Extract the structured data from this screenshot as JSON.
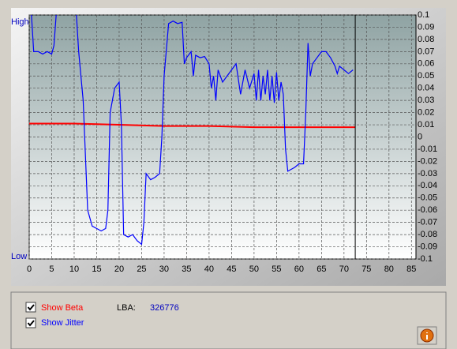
{
  "chart_data": {
    "type": "line",
    "y_left_labels": {
      "top": "High",
      "bottom": "Low"
    },
    "xlim": [
      0,
      86
    ],
    "xticks": [
      0,
      5,
      10,
      15,
      20,
      25,
      30,
      35,
      40,
      45,
      50,
      55,
      60,
      65,
      70,
      75,
      80,
      85
    ],
    "ylim": [
      -0.1,
      0.1
    ],
    "yticks": [
      0.1,
      0.09,
      0.08,
      0.07,
      0.06,
      0.05,
      0.04,
      0.03,
      0.02,
      0.01,
      0,
      -0.01,
      -0.02,
      -0.03,
      -0.04,
      -0.05,
      -0.06,
      -0.07,
      -0.08,
      -0.09,
      -0.1
    ],
    "grid": true,
    "cursor_x": 72.5,
    "series": [
      {
        "name": "Jitter",
        "color": "#0000ff",
        "x": [
          0.5,
          1,
          2,
          3,
          4,
          5,
          5.5,
          6,
          8,
          10.5,
          11,
          12,
          13,
          14,
          16,
          17,
          17.5,
          18,
          19,
          20,
          20.5,
          21,
          22,
          23,
          24,
          25,
          25.5,
          26,
          27,
          28,
          29,
          29.5,
          30,
          31,
          32,
          33,
          34,
          34.5,
          35,
          36,
          36.5,
          37,
          38,
          39,
          40,
          40.5,
          41,
          41.5,
          42,
          43,
          44,
          45,
          46,
          47,
          48,
          49,
          50,
          50.5,
          51,
          51.5,
          52,
          52.5,
          53,
          53.5,
          54,
          54.5,
          55,
          55.5,
          56,
          56.5,
          57,
          57.5,
          58,
          59,
          60,
          61,
          61.5,
          62,
          62.5,
          63,
          64,
          65,
          66,
          67,
          68,
          68.5,
          69,
          70,
          71,
          72
        ],
        "values": [
          0.1,
          0.07,
          0.07,
          0.068,
          0.07,
          0.068,
          0.075,
          0.1,
          null,
          0.1,
          0.07,
          0.03,
          -0.06,
          -0.073,
          -0.077,
          -0.075,
          -0.06,
          0.02,
          0.04,
          0.045,
          0.01,
          -0.08,
          -0.082,
          -0.08,
          -0.085,
          -0.088,
          -0.07,
          -0.03,
          -0.035,
          -0.033,
          -0.03,
          0,
          0.05,
          0.093,
          0.095,
          0.093,
          0.094,
          0.06,
          0.065,
          0.07,
          0.05,
          0.067,
          0.065,
          0.066,
          0.06,
          0.04,
          0.05,
          0.03,
          0.055,
          0.045,
          0.05,
          0.055,
          0.06,
          0.035,
          0.055,
          0.04,
          0.052,
          0.03,
          0.055,
          0.03,
          0.05,
          0.035,
          0.055,
          0.03,
          0.05,
          0.028,
          0.053,
          0.03,
          0.045,
          0.035,
          -0.01,
          -0.028,
          -0.027,
          -0.025,
          -0.022,
          -0.022,
          0.02,
          0.077,
          0.05,
          0.06,
          0.065,
          0.07,
          0.07,
          0.065,
          0.058,
          0.052,
          0.058,
          0.055,
          0.052,
          0.055
        ]
      },
      {
        "name": "Beta",
        "color": "#ff0000",
        "x": [
          0,
          10,
          20,
          30,
          40,
          50,
          60,
          72.5
        ],
        "values": [
          0.011,
          0.011,
          0.01,
          0.009,
          0.009,
          0.008,
          0.008,
          0.008
        ]
      }
    ]
  },
  "controls": {
    "show_beta": "Show Beta",
    "show_jitter": "Show Jitter",
    "lba_label": "LBA:",
    "lba_value": "326776"
  }
}
